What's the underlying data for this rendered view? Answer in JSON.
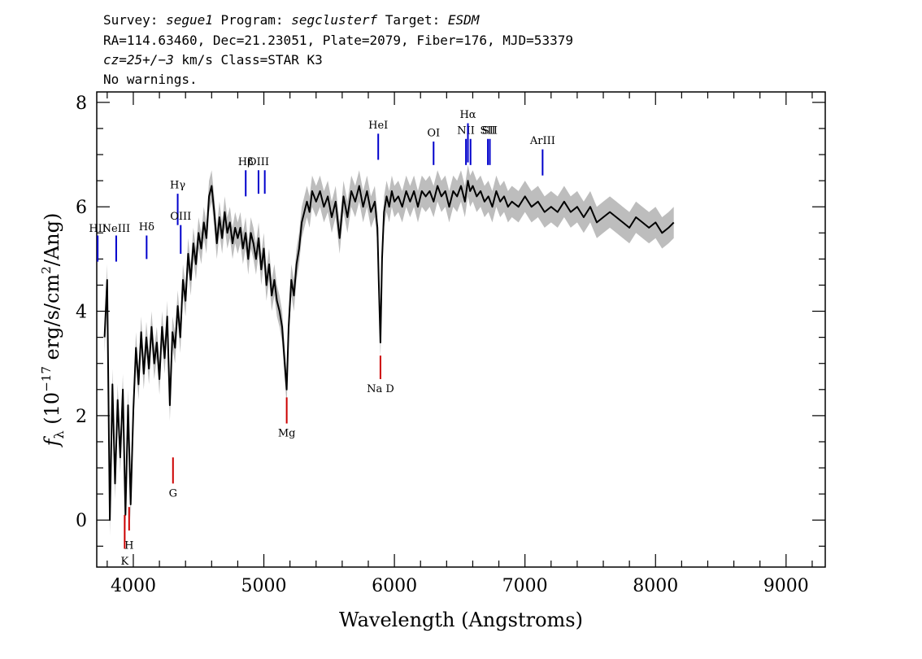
{
  "header": {
    "line1": {
      "survey_label": "Survey: ",
      "survey": "segue1",
      "program_label": " Program: ",
      "program": "segclusterf",
      "target_label": " Target: ",
      "target": "ESDM"
    },
    "line2": "RA=114.63460, Dec=21.23051, Plate=2079, Fiber=176, MJD=53379",
    "line3": {
      "cz": "cz=25+/−3",
      "rest": " km/s Class=STAR K3"
    },
    "line4": "No warnings."
  },
  "chart_data": {
    "type": "line",
    "xlabel": "Wavelength (Angstroms)",
    "ylabel": {
      "symbol": "f",
      "subscript": "λ",
      "pre": " (10",
      "exp17": "−17",
      "mid": " erg/s/cm",
      "exp2": "2",
      "post": "/Ang)"
    },
    "xlim": [
      3720,
      9300
    ],
    "ylim": [
      -0.9,
      8.2
    ],
    "xticks": [
      4000,
      5000,
      6000,
      7000,
      8000,
      9000
    ],
    "yticks": [
      0,
      2,
      4,
      6,
      8
    ],
    "x_minor_step": 200,
    "y_minor_step": 0.5,
    "grid": false,
    "legend": "none",
    "series": [
      {
        "role": "flux",
        "color": "#000000",
        "x": [
          3780,
          3800,
          3820,
          3840,
          3860,
          3880,
          3900,
          3920,
          3940,
          3960,
          3980,
          4000,
          4020,
          4040,
          4060,
          4080,
          4100,
          4120,
          4140,
          4160,
          4180,
          4200,
          4220,
          4240,
          4260,
          4280,
          4300,
          4320,
          4340,
          4360,
          4380,
          4400,
          4420,
          4440,
          4460,
          4480,
          4500,
          4520,
          4540,
          4560,
          4580,
          4600,
          4620,
          4640,
          4660,
          4680,
          4700,
          4720,
          4740,
          4760,
          4780,
          4800,
          4820,
          4840,
          4860,
          4880,
          4900,
          4920,
          4940,
          4960,
          4980,
          5000,
          5020,
          5040,
          5060,
          5080,
          5100,
          5120,
          5140,
          5160,
          5175,
          5190,
          5210,
          5230,
          5250,
          5270,
          5290,
          5310,
          5330,
          5350,
          5370,
          5400,
          5430,
          5460,
          5490,
          5520,
          5550,
          5580,
          5610,
          5640,
          5670,
          5700,
          5730,
          5760,
          5790,
          5820,
          5850,
          5870,
          5880,
          5893,
          5905,
          5920,
          5940,
          5960,
          5980,
          6000,
          6030,
          6060,
          6090,
          6120,
          6150,
          6180,
          6210,
          6240,
          6270,
          6300,
          6330,
          6360,
          6390,
          6420,
          6450,
          6480,
          6510,
          6540,
          6563,
          6580,
          6600,
          6630,
          6660,
          6690,
          6720,
          6750,
          6780,
          6810,
          6840,
          6870,
          6900,
          6950,
          7000,
          7050,
          7100,
          7150,
          7200,
          7250,
          7300,
          7350,
          7400,
          7450,
          7500,
          7550,
          7600,
          7650,
          7700,
          7750,
          7800,
          7850,
          7900,
          7950,
          8000,
          8050,
          8100,
          8140
        ],
        "values": [
          3.5,
          4.6,
          0.0,
          2.6,
          0.7,
          2.3,
          1.2,
          2.5,
          0.1,
          2.2,
          0.3,
          2.1,
          3.3,
          2.6,
          3.6,
          2.8,
          3.5,
          2.9,
          3.7,
          3.0,
          3.4,
          2.7,
          3.7,
          3.1,
          3.9,
          2.2,
          3.6,
          3.3,
          4.1,
          3.5,
          4.6,
          4.2,
          5.1,
          4.6,
          5.3,
          4.9,
          5.5,
          5.2,
          5.7,
          5.4,
          6.2,
          6.4,
          5.9,
          5.3,
          5.8,
          5.4,
          5.9,
          5.5,
          5.7,
          5.3,
          5.6,
          5.4,
          5.6,
          5.2,
          5.5,
          5.0,
          5.5,
          5.3,
          5.0,
          5.4,
          4.8,
          5.2,
          4.5,
          4.9,
          4.3,
          4.6,
          4.2,
          4.0,
          3.7,
          3.0,
          2.5,
          3.7,
          4.6,
          4.3,
          4.9,
          5.2,
          5.7,
          5.9,
          6.1,
          5.9,
          6.3,
          6.1,
          6.3,
          6.0,
          6.2,
          5.8,
          6.1,
          5.4,
          6.2,
          5.8,
          6.3,
          6.1,
          6.4,
          6.0,
          6.3,
          5.9,
          6.1,
          5.6,
          4.6,
          3.4,
          5.0,
          5.9,
          6.2,
          6.0,
          6.3,
          6.1,
          6.2,
          6.0,
          6.3,
          6.1,
          6.3,
          6.0,
          6.3,
          6.2,
          6.3,
          6.1,
          6.4,
          6.2,
          6.3,
          6.0,
          6.3,
          6.2,
          6.4,
          6.1,
          6.5,
          6.3,
          6.4,
          6.2,
          6.3,
          6.1,
          6.2,
          6.0,
          6.3,
          6.1,
          6.2,
          6.0,
          6.1,
          6.0,
          6.2,
          6.0,
          6.1,
          5.9,
          6.0,
          5.9,
          6.1,
          5.9,
          6.0,
          5.8,
          6.0,
          5.7,
          5.8,
          5.9,
          5.8,
          5.7,
          5.6,
          5.8,
          5.7,
          5.6,
          5.7,
          5.5,
          5.6,
          5.7
        ]
      },
      {
        "role": "error",
        "color": "#bdbdbd",
        "band": 0.3
      }
    ],
    "emission_lines": [
      {
        "label": "HII",
        "x": 3727,
        "y0": 4.95,
        "y1": 5.45,
        "label_y": 5.52
      },
      {
        "label": "NeIII",
        "x": 3869,
        "y0": 4.95,
        "y1": 5.45,
        "label_y": 5.52
      },
      {
        "label": "Hδ",
        "x": 4102,
        "y0": 5.0,
        "y1": 5.45,
        "label_y": 5.55
      },
      {
        "label": "Hγ",
        "x": 4340,
        "y0": 5.65,
        "y1": 6.25,
        "label_y": 6.35
      },
      {
        "label": "OIII",
        "x": 4363,
        "y0": 5.1,
        "y1": 5.65,
        "label_y": 5.75
      },
      {
        "label": "Hβ",
        "x": 4861,
        "y0": 6.2,
        "y1": 6.7,
        "label_y": 6.8
      },
      {
        "label": "OIII",
        "x": 4959,
        "y0": 6.25,
        "y1": 6.7,
        "label_y": 6.8
      },
      {
        "label": "",
        "x": 5007,
        "y0": 6.25,
        "y1": 6.7,
        "label_y": 6.8
      },
      {
        "label": "HeI",
        "x": 5876,
        "y0": 6.9,
        "y1": 7.4,
        "label_y": 7.5
      },
      {
        "label": "OI",
        "x": 6300,
        "y0": 6.8,
        "y1": 7.25,
        "label_y": 7.35
      },
      {
        "label": "NII",
        "x": 6548,
        "y0": 6.8,
        "y1": 7.3,
        "label_y": 7.4
      },
      {
        "label": "Hα",
        "x": 6563,
        "y0": 6.85,
        "y1": 7.6,
        "label_y": 7.7
      },
      {
        "label": "",
        "x": 6583,
        "y0": 6.8,
        "y1": 7.3,
        "label_y": 7.4
      },
      {
        "label": "SII",
        "x": 6716,
        "y0": 6.8,
        "y1": 7.3,
        "label_y": 7.4
      },
      {
        "label": "SII",
        "x": 6731,
        "y0": 6.8,
        "y1": 7.3,
        "label_y": 7.4
      },
      {
        "label": "ArIII",
        "x": 7135,
        "y0": 6.6,
        "y1": 7.1,
        "label_y": 7.2
      }
    ],
    "absorption_lines": [
      {
        "label": "K",
        "x": 3934,
        "y0": -0.55,
        "y1": 0.1,
        "label_y": -0.85
      },
      {
        "label": "H",
        "x": 3968,
        "y0": -0.2,
        "y1": 0.25,
        "label_y": -0.55
      },
      {
        "label": "G",
        "x": 4304,
        "y0": 0.7,
        "y1": 1.2,
        "label_y": 0.45
      },
      {
        "label": "Mg",
        "x": 5175,
        "y0": 1.85,
        "y1": 2.35,
        "label_y": 1.6
      },
      {
        "label": "Na D",
        "x": 5893,
        "y0": 2.7,
        "y1": 3.15,
        "label_y": 2.45
      }
    ],
    "colors": {
      "emission": "#0000cc",
      "absorption": "#cc0000",
      "flux": "#000000",
      "error": "#bdbdbd"
    }
  }
}
